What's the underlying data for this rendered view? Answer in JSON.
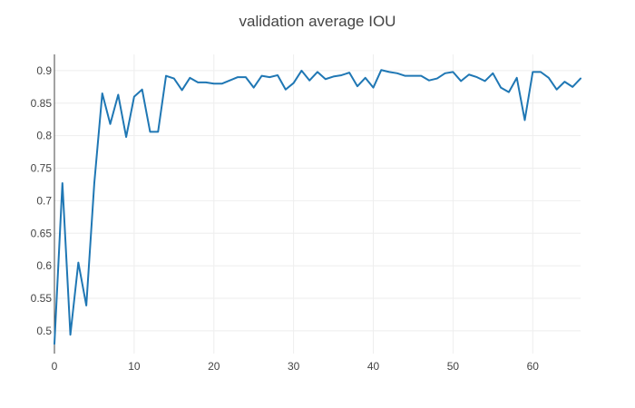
{
  "chart_data": {
    "type": "line",
    "title": "validation average IOU",
    "xlabel": "",
    "ylabel": "",
    "xlim": [
      0,
      66
    ],
    "ylim": [
      0.465,
      0.925
    ],
    "x_ticks": [
      0,
      10,
      20,
      30,
      40,
      50,
      60
    ],
    "y_ticks": [
      0.5,
      0.55,
      0.6,
      0.65,
      0.7,
      0.75,
      0.8,
      0.85,
      0.9
    ],
    "y_tick_labels": [
      "0.5",
      "0.55",
      "0.6",
      "0.65",
      "0.7",
      "0.75",
      "0.8",
      "0.85",
      "0.9"
    ],
    "grid": true,
    "legend": "none",
    "series": [
      {
        "color": "#1f77b4",
        "x": [
          0,
          1,
          2,
          3,
          4,
          5,
          6,
          7,
          8,
          9,
          10,
          11,
          12,
          13,
          14,
          15,
          16,
          17,
          18,
          19,
          20,
          21,
          22,
          23,
          24,
          25,
          26,
          27,
          28,
          29,
          30,
          31,
          32,
          33,
          34,
          35,
          36,
          37,
          38,
          39,
          40,
          41,
          42,
          43,
          44,
          45,
          46,
          47,
          48,
          49,
          50,
          51,
          52,
          53,
          54,
          55,
          56,
          57,
          58,
          59,
          60,
          61,
          62,
          63,
          64,
          65,
          66
        ],
        "y": [
          0.48,
          0.727,
          0.494,
          0.605,
          0.539,
          0.727,
          0.865,
          0.818,
          0.863,
          0.798,
          0.86,
          0.871,
          0.806,
          0.806,
          0.892,
          0.888,
          0.87,
          0.889,
          0.882,
          0.882,
          0.88,
          0.88,
          0.885,
          0.89,
          0.89,
          0.874,
          0.892,
          0.89,
          0.893,
          0.871,
          0.881,
          0.9,
          0.885,
          0.898,
          0.887,
          0.891,
          0.893,
          0.897,
          0.876,
          0.889,
          0.874,
          0.901,
          0.898,
          0.896,
          0.892,
          0.892,
          0.892,
          0.885,
          0.888,
          0.896,
          0.898,
          0.884,
          0.894,
          0.89,
          0.884,
          0.896,
          0.874,
          0.867,
          0.889,
          0.824,
          0.898,
          0.898,
          0.889,
          0.871,
          0.883,
          0.875,
          0.888
        ]
      }
    ]
  }
}
